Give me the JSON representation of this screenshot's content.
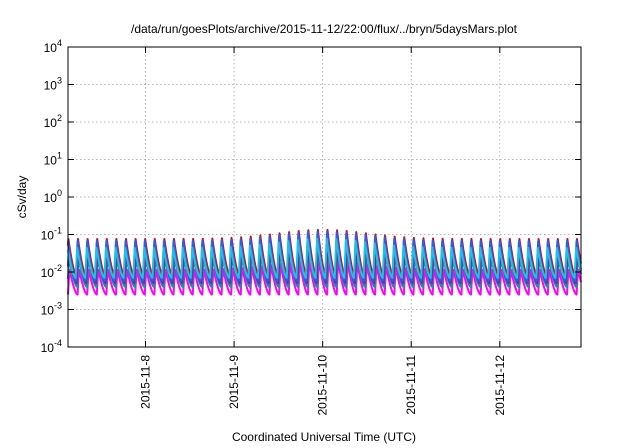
{
  "chart_data": {
    "type": "line",
    "title": "/data/run/goesPlots/archive/2015-11-12/22:00/flux/../bryn/5daysMars.plot",
    "xlabel": "Coordinated Universal Time (UTC)",
    "ylabel": "cSv/day",
    "yscale": "log",
    "ylim": [
      0.0001,
      10000
    ],
    "xlim": [
      "2015-11-07T03:00",
      "2015-11-12T22:00"
    ],
    "y_ticks": [
      {
        "base": "10",
        "exp": "-4",
        "value": 0.0001
      },
      {
        "base": "10",
        "exp": "-3",
        "value": 0.001
      },
      {
        "base": "10",
        "exp": "-2",
        "value": 0.01
      },
      {
        "base": "10",
        "exp": "-1",
        "value": 0.1
      },
      {
        "base": "10",
        "exp": "0",
        "value": 1
      },
      {
        "base": "10",
        "exp": "1",
        "value": 10
      },
      {
        "base": "10",
        "exp": "2",
        "value": 100
      },
      {
        "base": "10",
        "exp": "3",
        "value": 1000
      },
      {
        "base": "10",
        "exp": "4",
        "value": 10000
      }
    ],
    "x_ticks": [
      {
        "label": "2015-11-8",
        "value": "2015-11-08T00:00"
      },
      {
        "label": "2015-11-9",
        "value": "2015-11-09T00:00"
      },
      {
        "label": "2015-11-10",
        "value": "2015-11-10T00:00"
      },
      {
        "label": "2015-11-11",
        "value": "2015-11-11T00:00"
      },
      {
        "label": "2015-11-12",
        "value": "2015-11-12T00:00"
      }
    ],
    "grid": true,
    "legend": "none",
    "series": [
      {
        "color": "#ff00ff",
        "low": 0.0025,
        "high": 0.012
      },
      {
        "color": "#00a0a0",
        "low": 0.004,
        "high": 0.025
      },
      {
        "color": "#7030a0",
        "low": 0.005,
        "high": 0.035
      },
      {
        "color": "#d01010",
        "low": 0.008,
        "high": 0.08
      },
      {
        "color": "#2060ff",
        "low": 0.006,
        "high": 0.07
      },
      {
        "color": "#20c0e0",
        "low": 0.007,
        "high": 0.045
      }
    ],
    "pulse_period_hours": 2.6
  }
}
